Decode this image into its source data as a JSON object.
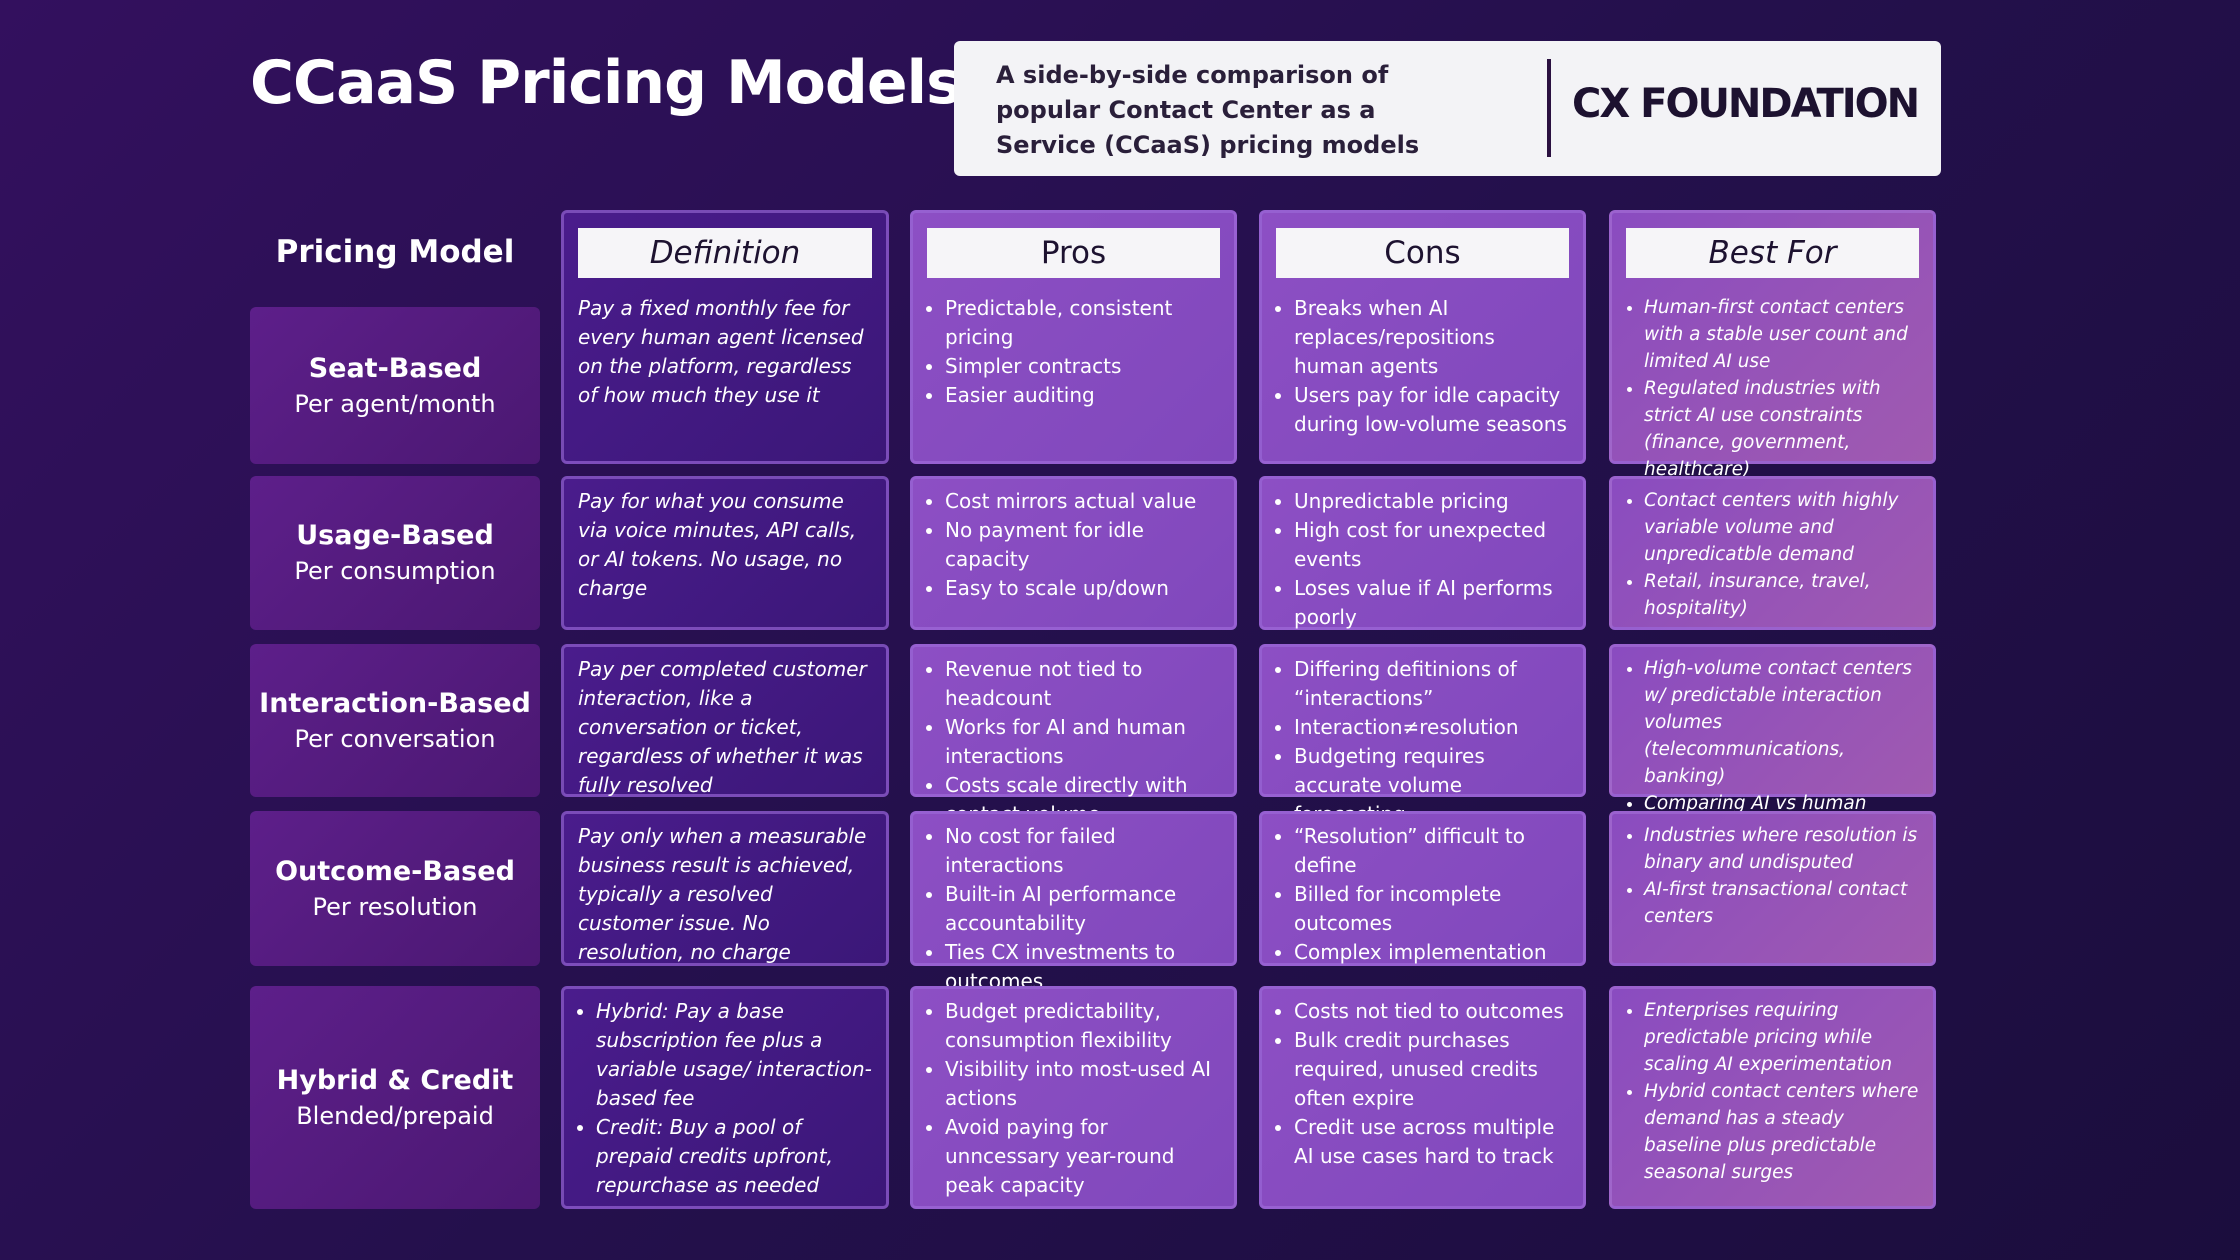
{
  "header": {
    "title": "CCaaS Pricing Models",
    "subtitle": "A side-by-side comparison of popular Contact Center as a Service (CCaaS) pricing models",
    "brand": "CX FOUNDATION"
  },
  "table": {
    "columns": [
      "Pricing Model",
      "Definition",
      "Pros",
      "Cons",
      "Best For"
    ],
    "rows": [
      {
        "model": "Seat-Based",
        "unit": "Per agent/month",
        "definition": "Pay a fixed monthly fee for every human agent licensed on the platform, regardless of how much they use it",
        "pros": [
          "Predictable, consistent pricing",
          "Simpler contracts",
          "Easier auditing"
        ],
        "cons": [
          "Breaks when AI replaces/repositions human agents",
          "Users pay for idle capacity during low-volume seasons"
        ],
        "best_for": [
          "Human-first contact centers with a stable user count and limited AI use",
          "Regulated industries with strict AI use constraints (finance, government, healthcare)"
        ]
      },
      {
        "model": "Usage-Based",
        "unit": "Per consumption",
        "definition": "Pay for what you consume via voice minutes, API calls, or AI tokens. No usage, no charge",
        "pros": [
          "Cost mirrors actual value",
          "No payment for idle capacity",
          "Easy to scale up/down"
        ],
        "cons": [
          "Unpredictable pricing",
          "High cost for unexpected events",
          "Loses value if AI performs poorly"
        ],
        "best_for": [
          "Contact centers with highly variable volume and unpredicatble demand",
          "Retail, insurance, travel, hospitality)"
        ]
      },
      {
        "model": "Interaction-Based",
        "unit": "Per conversation",
        "definition": "Pay per completed customer interaction, like a conversation or ticket, regardless of whether it was fully resolved",
        "pros": [
          "Revenue not tied to headcount",
          "Works for AI and human interactions",
          "Costs scale directly with contact volume"
        ],
        "cons": [
          "Differing defitinions of “interactions”",
          "Interaction≠resolution",
          "Budgeting requires accurate volume forecasting"
        ],
        "best_for": [
          "High-volume contact centers w/ predictable interaction volumes (telecommunications, banking)",
          "Comparing AI vs human agent costs"
        ]
      },
      {
        "model": "Outcome-Based",
        "unit": "Per resolution",
        "definition": "Pay only when a measurable business result is achieved, typically a resolved customer issue. No resolution, no charge",
        "pros": [
          "No cost for failed interactions",
          "Built-in AI performance accountability",
          "Ties CX investments to outcomes"
        ],
        "cons": [
          "“Resolution” difficult to define",
          "Billed for incomplete outcomes",
          "Complex implementation"
        ],
        "best_for": [
          "Industries where resolution is binary and undisputed",
          "AI-first transactional contact centers"
        ]
      },
      {
        "model": "Hybrid & Credit",
        "unit": "Blended/prepaid",
        "definition": [
          "Hybrid: Pay a base subscription fee plus a variable usage/ interaction-based fee",
          "Credit: Buy a pool of prepaid credits upfront, repurchase as needed"
        ],
        "pros": [
          "Budget predictability, consumption flexibility",
          "Visibility into most-used AI actions",
          "Avoid paying for unncessary year-round peak capacity"
        ],
        "cons": [
          "Costs not tied to outcomes",
          "Bulk credit purchases required, unused credits often expire",
          "Credit use across multiple AI use cases hard to track"
        ],
        "best_for": [
          "Enterprises requiring predictable pricing while scaling AI experimentation",
          "Hybrid contact centers where demand has a steady baseline plus predictable seasonal surges"
        ]
      }
    ]
  }
}
